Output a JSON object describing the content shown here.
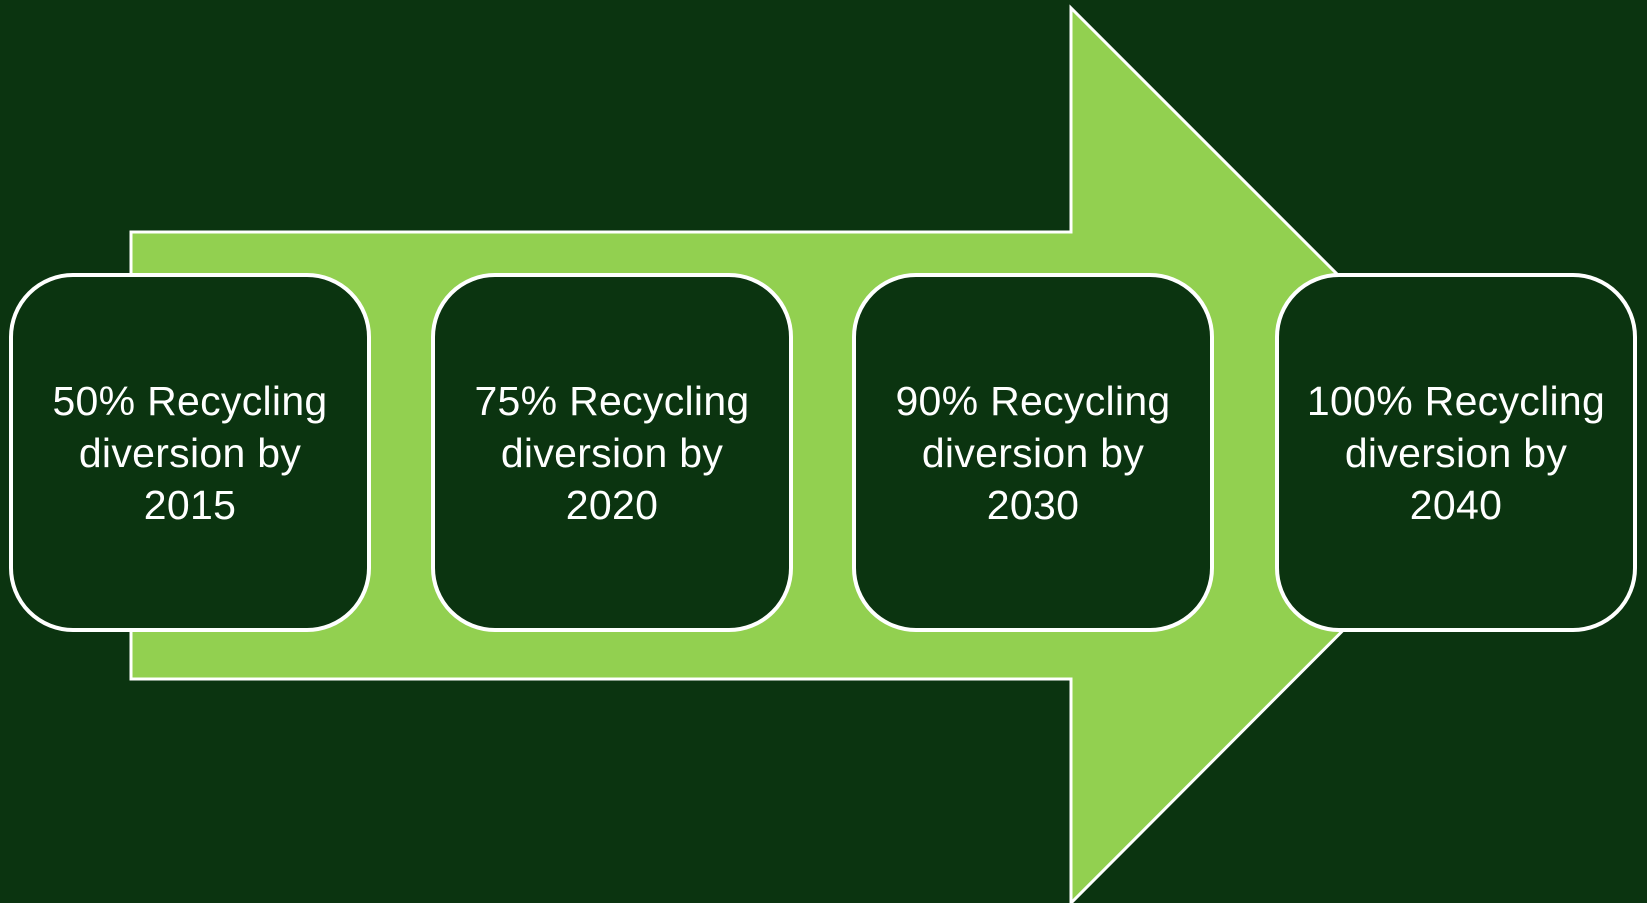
{
  "colors": {
    "background": "#0b3410",
    "arrow_fill": "#92d050",
    "box_fill": "#0b3410",
    "box_border": "#ffffff",
    "text": "#ffffff"
  },
  "milestones": [
    {
      "text": "50% Recycling\ndiversion by\n2015"
    },
    {
      "text": "75% Recycling\ndiversion by\n2020"
    },
    {
      "text": "90% Recycling\ndiversion by\n2030"
    },
    {
      "text": "100% Recycling\ndiversion by\n2040"
    }
  ]
}
